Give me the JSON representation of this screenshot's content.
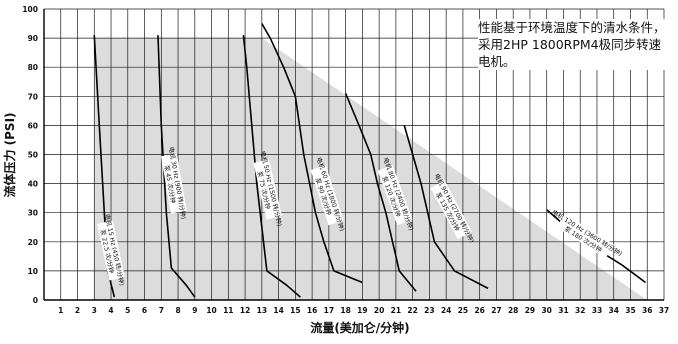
{
  "chart_data": {
    "type": "line",
    "title": "",
    "xlabel": "流量(美加仑/分钟)",
    "ylabel": "流体压力 (PSI)",
    "xlim": [
      0,
      37
    ],
    "ylim": [
      0,
      100
    ],
    "x_ticks": [
      1,
      2,
      3,
      4,
      5,
      6,
      7,
      8,
      9,
      10,
      11,
      12,
      13,
      14,
      15,
      16,
      17,
      18,
      19,
      20,
      21,
      22,
      23,
      24,
      25,
      26,
      27,
      28,
      29,
      30,
      31,
      32,
      33,
      34,
      35,
      36,
      37
    ],
    "y_ticks": [
      0,
      10,
      20,
      30,
      40,
      50,
      60,
      70,
      80,
      90,
      100
    ],
    "grid": true,
    "annotation": "性能基于环境温度下的清水条件，采用2HP 1800RPM4极同步转速电机。",
    "operating_envelope": {
      "color": "#dcdcdc",
      "points": [
        [
          3,
          0
        ],
        [
          3,
          90
        ],
        [
          13,
          90
        ],
        [
          36,
          0
        ]
      ]
    },
    "series": [
      {
        "name": "电机 15 Hz (450 转/分钟)",
        "sub": "泵 22.5 次/分钟",
        "points": [
          [
            3.0,
            91
          ],
          [
            3.3,
            60
          ],
          [
            3.6,
            30
          ],
          [
            3.8,
            10
          ],
          [
            4.2,
            1
          ]
        ]
      },
      {
        "name": "电机 30 Hz (900 转/分钟)",
        "sub": "泵 45 次/分钟",
        "points": [
          [
            6.8,
            91
          ],
          [
            7.0,
            60
          ],
          [
            7.3,
            30
          ],
          [
            7.6,
            11
          ],
          [
            8.5,
            5
          ],
          [
            9.0,
            1
          ]
        ]
      },
      {
        "name": "电机 50 Hz (1500 转/分钟)",
        "sub": "泵 75 次/分钟",
        "points": [
          [
            11.9,
            91
          ],
          [
            12.1,
            80
          ],
          [
            12.4,
            60
          ],
          [
            12.7,
            40
          ],
          [
            13.0,
            25
          ],
          [
            13.3,
            10
          ],
          [
            14.5,
            5
          ],
          [
            15.3,
            1
          ]
        ]
      },
      {
        "name": "电机 60 Hz (1800 转/分钟)",
        "sub": "泵 90 次/分钟",
        "points": [
          [
            13.0,
            95
          ],
          [
            13.5,
            90
          ],
          [
            14.3,
            80
          ],
          [
            15.0,
            70
          ],
          [
            15.5,
            50
          ],
          [
            16.2,
            30
          ],
          [
            16.7,
            20
          ],
          [
            17.3,
            10
          ],
          [
            19.0,
            6
          ]
        ]
      },
      {
        "name": "电机 80 Hz (2400 转/分钟)",
        "sub": "泵 120 次/分钟",
        "points": [
          [
            18.0,
            71
          ],
          [
            18.8,
            60
          ],
          [
            19.5,
            50
          ],
          [
            19.9,
            40
          ],
          [
            20.4,
            30
          ],
          [
            20.8,
            20
          ],
          [
            21.2,
            10
          ],
          [
            22.2,
            3
          ]
        ]
      },
      {
        "name": "电机 90 Hz (2700 转/分钟)",
        "sub": "泵 135 次/分钟",
        "points": [
          [
            21.5,
            60
          ],
          [
            22.0,
            50
          ],
          [
            22.5,
            40
          ],
          [
            23.3,
            20
          ],
          [
            24.5,
            10
          ],
          [
            26.5,
            4
          ]
        ]
      },
      {
        "name": "电机 120 Hz (3600 转/分钟)",
        "sub": "泵 180 次/分钟",
        "points": [
          [
            30.0,
            31
          ],
          [
            32.0,
            21
          ],
          [
            34.5,
            12
          ],
          [
            35.9,
            6
          ]
        ]
      }
    ]
  }
}
